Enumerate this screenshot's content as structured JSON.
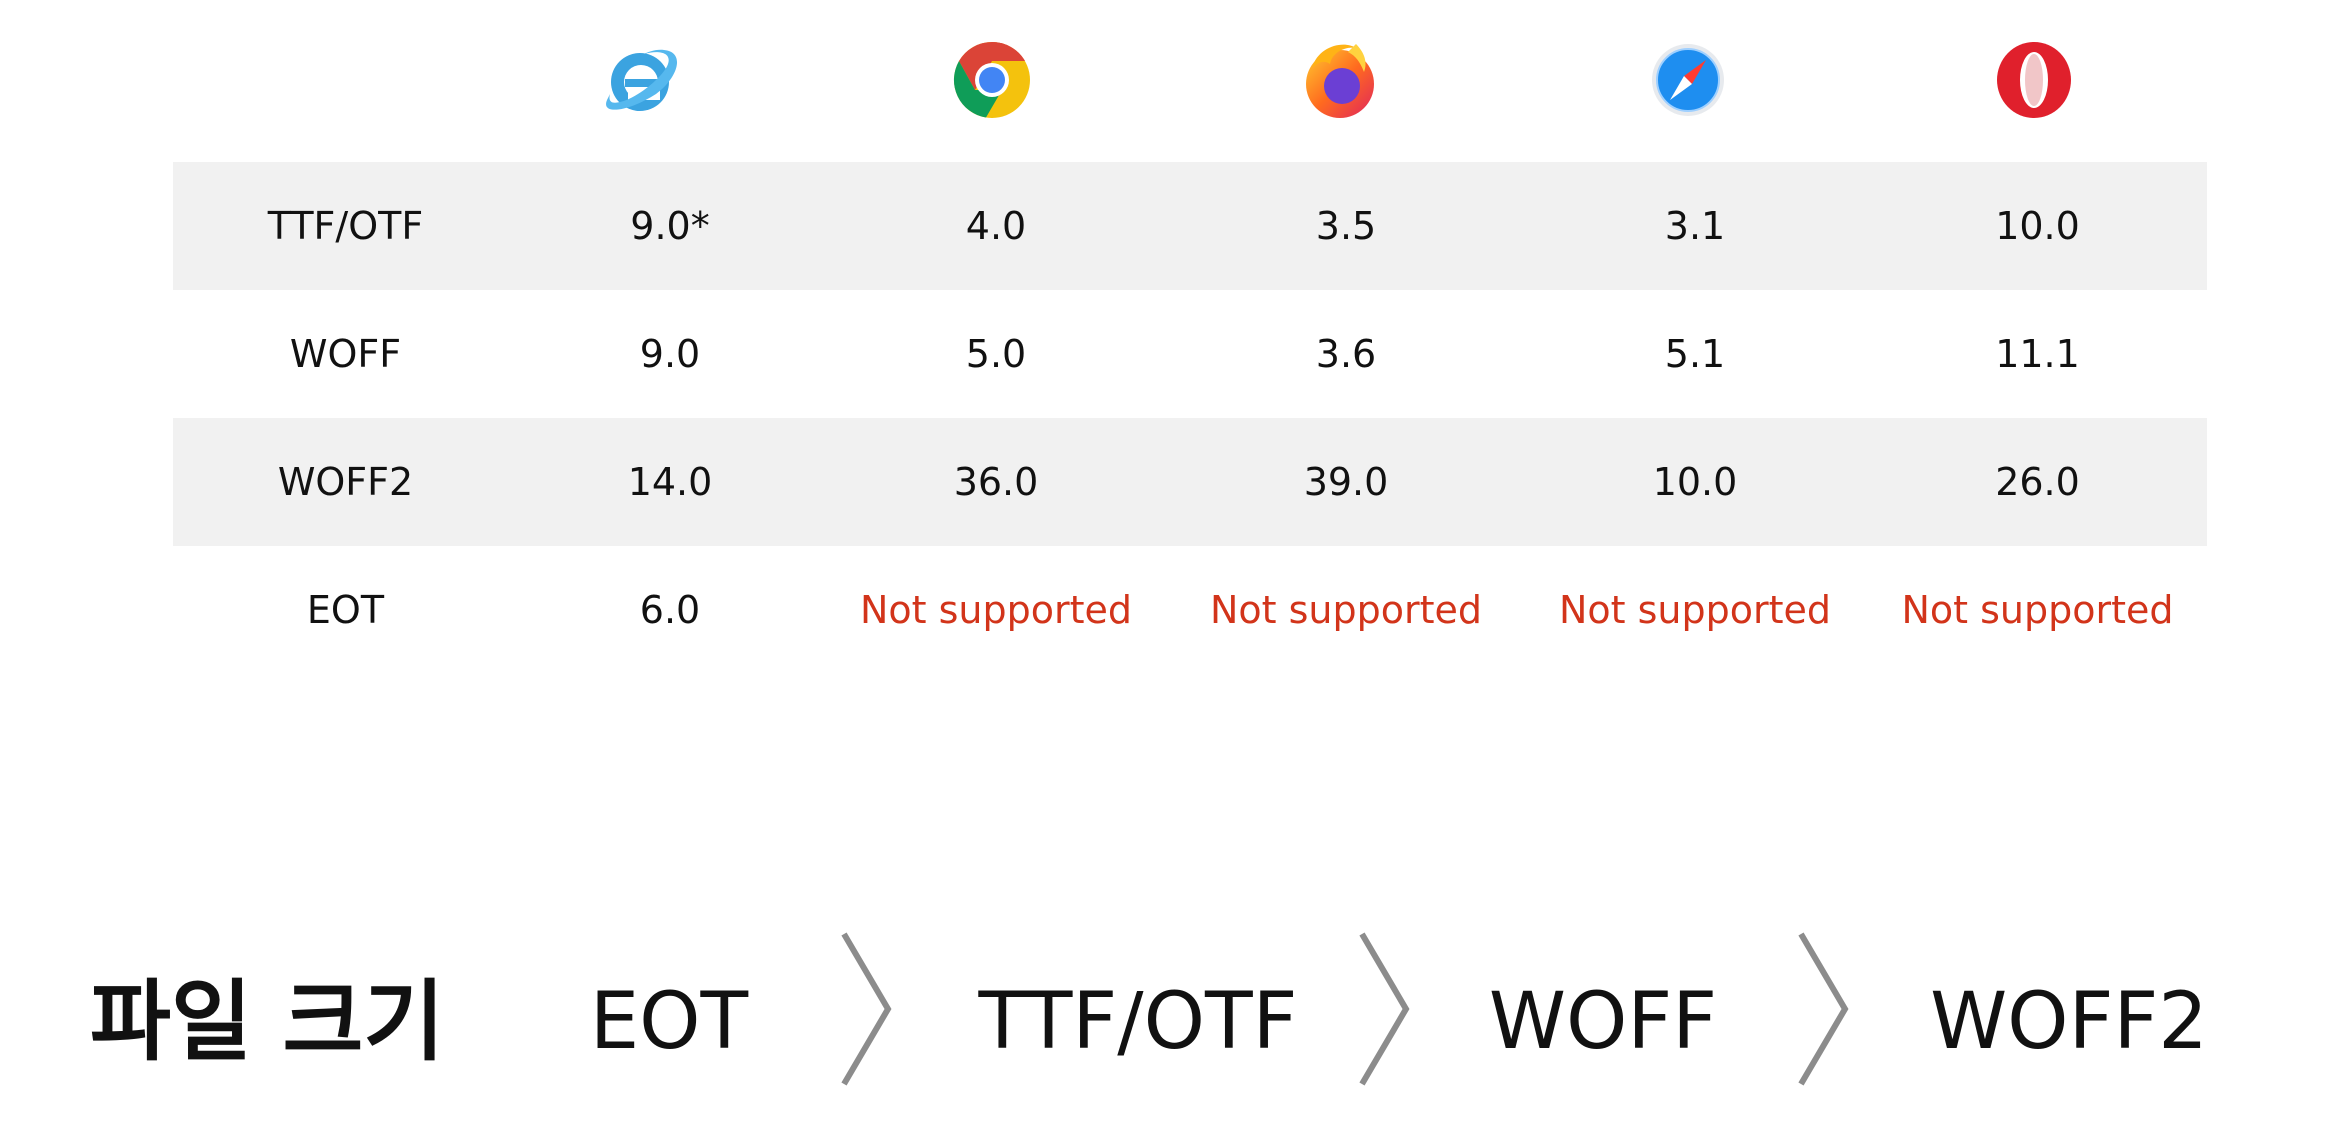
{
  "browsers": [
    {
      "name": "Internet Explorer",
      "icon": "internet-explorer-icon"
    },
    {
      "name": "Chrome",
      "icon": "chrome-icon"
    },
    {
      "name": "Firefox",
      "icon": "firefox-icon"
    },
    {
      "name": "Safari",
      "icon": "safari-icon"
    },
    {
      "name": "Opera",
      "icon": "opera-icon"
    }
  ],
  "table": {
    "rows": [
      {
        "format": "TTF/OTF",
        "cells": [
          "9.0*",
          "4.0",
          "3.5",
          "3.1",
          "10.0"
        ]
      },
      {
        "format": "WOFF",
        "cells": [
          "9.0",
          "5.0",
          "3.6",
          "5.1",
          "11.1"
        ]
      },
      {
        "format": "WOFF2",
        "cells": [
          "14.0",
          "36.0",
          "39.0",
          "10.0",
          "26.0"
        ]
      },
      {
        "format": "EOT",
        "cells": [
          "6.0",
          "Not supported",
          "Not supported",
          "Not supported",
          "Not supported"
        ]
      }
    ]
  },
  "file_size": {
    "title": "파일 크기",
    "order": [
      "EOT",
      "TTF/OTF",
      "WOFF",
      "WOFF2"
    ]
  },
  "colors": {
    "not_supported": "#d2341a",
    "shaded_row": "#f1f1f1",
    "chevron": "#8c8c8c"
  }
}
